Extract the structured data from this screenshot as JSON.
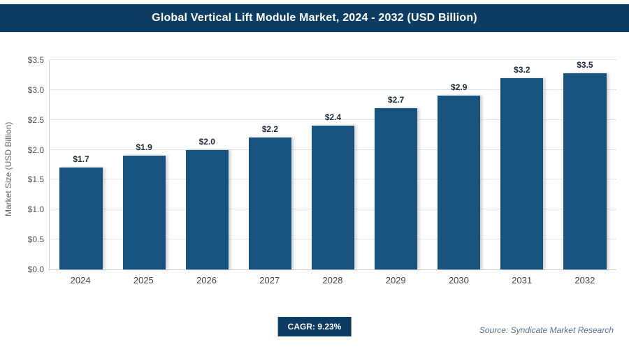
{
  "header": {
    "title": "Global Vertical Lift Module Market, 2024 - 2032 (USD Billion)"
  },
  "chart_data": {
    "type": "bar",
    "title": "Global Vertical Lift Module Market, 2024 - 2032 (USD Billion)",
    "categories": [
      "2024",
      "2025",
      "2026",
      "2027",
      "2028",
      "2029",
      "2030",
      "2031",
      "2032"
    ],
    "values": [
      1.7,
      1.9,
      2.0,
      2.2,
      2.4,
      2.7,
      2.9,
      3.2,
      3.5
    ],
    "value_labels": [
      "$1.7",
      "$1.9",
      "$2.0",
      "$2.2",
      "$2.4",
      "$2.7",
      "$2.9",
      "$3.2",
      "$3.5"
    ],
    "xlabel": "",
    "ylabel": "Market Size (USD Billion)",
    "ylim": [
      0,
      3.5
    ],
    "ytick_step": 0.5,
    "ytick_labels": [
      "$0.0",
      "$0.5",
      "$1.0",
      "$1.5",
      "$2.0",
      "$2.5",
      "$3.0",
      "$3.5"
    ],
    "grid": true,
    "legend": false,
    "bar_color": "#16537e"
  },
  "footer": {
    "cagr_label": "CAGR: 9.23%",
    "source": "Source: Syndicate Market Research"
  },
  "colors": {
    "header_bg": "#0d3c63",
    "badge_bg": "#0d3c63",
    "bar": "#16537e",
    "gridline": "#e3e3e3",
    "axis_text": "#555555"
  }
}
